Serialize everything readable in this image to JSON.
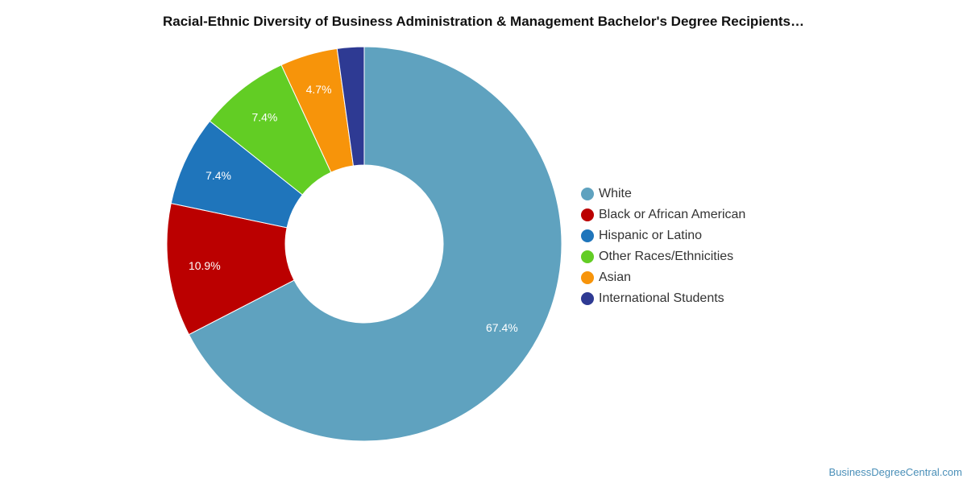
{
  "chart_data": {
    "type": "pie",
    "title": "Racial-Ethnic Diversity of Business Administration & Management Bachelor's Degree Recipients…",
    "donut": true,
    "legend_position": "right",
    "slices": [
      {
        "name": "White",
        "value": 67.4,
        "label": "67.4%",
        "color": "#5fa2bf"
      },
      {
        "name": "Black or African American",
        "value": 10.9,
        "label": "10.9%",
        "color": "#bb0000"
      },
      {
        "name": "Hispanic or Latino",
        "value": 7.4,
        "label": "7.4%",
        "color": "#1f75bb"
      },
      {
        "name": "Other Races/Ethnicities",
        "value": 7.4,
        "label": "7.4%",
        "color": "#62cd24"
      },
      {
        "name": "Asian",
        "value": 4.7,
        "label": "4.7%",
        "color": "#f7940a"
      },
      {
        "name": "International Students",
        "value": 2.2,
        "label": "",
        "color": "#2e3a93"
      }
    ]
  },
  "watermark": "BusinessDegreeCentral.com"
}
